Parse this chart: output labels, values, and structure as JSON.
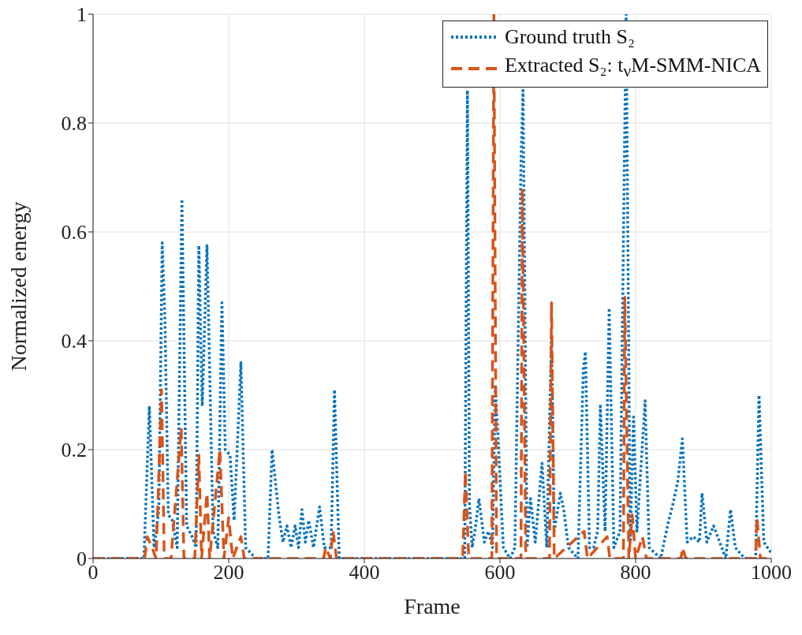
{
  "chart_data": {
    "type": "line",
    "xlabel": "Frame",
    "ylabel": "Normalized energy",
    "xlim": [
      0,
      1000
    ],
    "ylim": [
      0,
      1
    ],
    "xticks": [
      0,
      200,
      400,
      600,
      800,
      1000
    ],
    "yticks": [
      0,
      0.2,
      0.4,
      0.6,
      0.8,
      1
    ],
    "grid": true,
    "legend": "top right",
    "marker": "none",
    "series": [
      {
        "name": "Ground truth S₂",
        "color": "#0072bd",
        "line_style": "dotted",
        "x": [
          0,
          75,
          83,
          90,
          97,
          102,
          106,
          111,
          117,
          124,
          131,
          138,
          146,
          152,
          156,
          161,
          168,
          177,
          184,
          190,
          195,
          202,
          208,
          218,
          225,
          240,
          258,
          264,
          274,
          280,
          286,
          292,
          298,
          303,
          308,
          313,
          318,
          325,
          334,
          341,
          351,
          356,
          363,
          400,
          500,
          548,
          552,
          555,
          559,
          563,
          569,
          577,
          583,
          589,
          593,
          598,
          605,
          615,
          622,
          631,
          634,
          640,
          645,
          652,
          662,
          669,
          676,
          680,
          689,
          694,
          701,
          715,
          723,
          726,
          732,
          738,
          744,
          748,
          755,
          761,
          768,
          777,
          786,
          792,
          797,
          802,
          814,
          820,
          837,
          847,
          855,
          862,
          869,
          876,
          885,
          894,
          898,
          905,
          915,
          924,
          933,
          940,
          947,
          961,
          977,
          982,
          989,
          1000
        ],
        "values": [
          0,
          0,
          0.28,
          0.02,
          0.09,
          0.58,
          0.44,
          0.08,
          0.07,
          0.02,
          0.66,
          0.06,
          0.04,
          0.02,
          0.575,
          0.28,
          0.575,
          0.05,
          0.02,
          0.47,
          0.2,
          0.19,
          0.07,
          0.36,
          0.02,
          0,
          0,
          0.2,
          0.08,
          0.03,
          0.06,
          0.02,
          0.06,
          0.02,
          0.09,
          0.03,
          0.07,
          0.02,
          0.095,
          0.02,
          0.02,
          0.31,
          0,
          0,
          0,
          0,
          0.86,
          0.1,
          0.02,
          0.05,
          0.11,
          0.03,
          0.05,
          0.02,
          0.32,
          0.2,
          0.02,
          0,
          0.02,
          0.73,
          0.86,
          0.02,
          0.11,
          0.03,
          0.175,
          0.02,
          0.41,
          0.05,
          0.12,
          0.09,
          0.02,
          0,
          0.35,
          0.38,
          0.02,
          0.02,
          0.05,
          0.28,
          0.05,
          0.46,
          0.02,
          0.05,
          1,
          0.03,
          0.26,
          0.05,
          0.29,
          0.02,
          0,
          0.06,
          0.1,
          0.14,
          0.22,
          0.03,
          0.04,
          0.03,
          0.12,
          0.03,
          0.06,
          0.03,
          0,
          0.09,
          0.02,
          0,
          0,
          0.3,
          0.03,
          0.01
        ]
      },
      {
        "name": "Extracted S₂: t$_{ν}$M-SMM-NICA",
        "color": "#d95319",
        "line_style": "dashed",
        "x": [
          0,
          76,
          80,
          87,
          93,
          101,
          105,
          115,
          130,
          134,
          150,
          156,
          160,
          168,
          172,
          187,
          193,
          200,
          206,
          218,
          223,
          340,
          343,
          350,
          354,
          359,
          545,
          549,
          554,
          588,
          591,
          595,
          631,
          633,
          638,
          673,
          676,
          680,
          724,
          729,
          758,
          762,
          782,
          784,
          790,
          795,
          800,
          810,
          816,
          867,
          869,
          874,
          977,
          979,
          984,
          1000
        ],
        "values": [
          0,
          0,
          0.04,
          0.02,
          0,
          0.31,
          0,
          0,
          0.24,
          0,
          0,
          0.19,
          0,
          0.12,
          0,
          0.2,
          0,
          0.075,
          0,
          0.04,
          0,
          0,
          0.02,
          0,
          0.05,
          0,
          0,
          0.16,
          0,
          0,
          1,
          0,
          0,
          0.68,
          0,
          0,
          0.47,
          0,
          0.05,
          0,
          0.04,
          0,
          0,
          0.48,
          0,
          0.08,
          0,
          0.04,
          0,
          0,
          0.02,
          0,
          0,
          0.075,
          0,
          0
        ]
      }
    ]
  }
}
